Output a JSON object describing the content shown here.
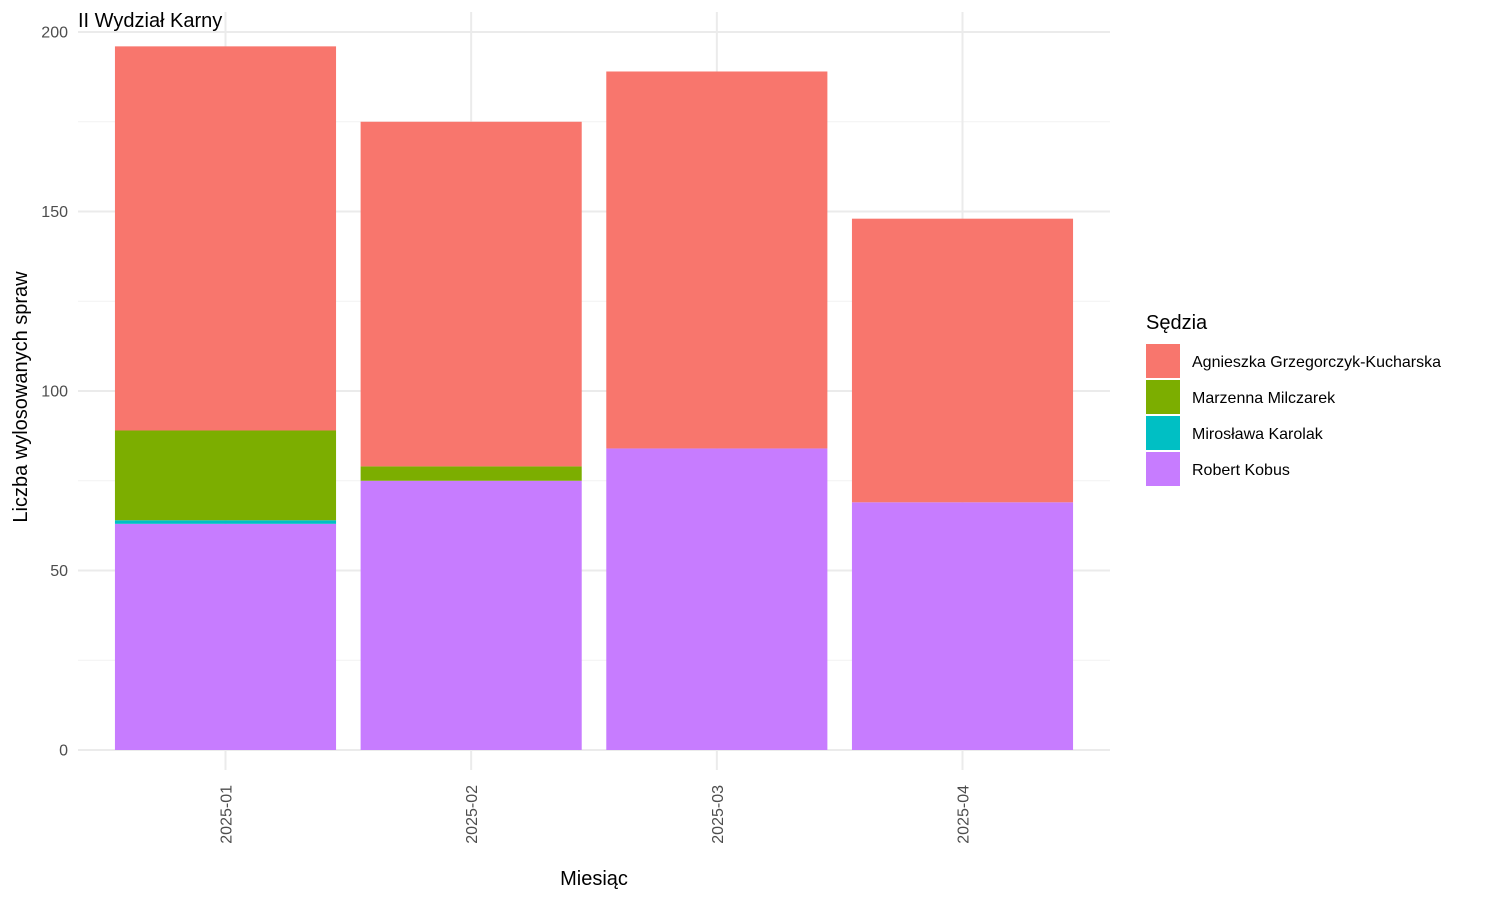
{
  "chart_data": {
    "type": "bar",
    "stacked": true,
    "title": "II Wydział Karny",
    "xlabel": "Miesiąc",
    "ylabel": "Liczba wylosowanych spraw",
    "categories": [
      "2025-01",
      "2025-02",
      "2025-03",
      "2025-04"
    ],
    "ylim": [
      0,
      200
    ],
    "yticks": [
      0,
      50,
      100,
      150,
      200
    ],
    "grid": true,
    "legend": {
      "title": "Sędzia",
      "position": "right"
    },
    "series": [
      {
        "name": "Robert Kobus",
        "color": "#C77CFF",
        "values": [
          63,
          75,
          84,
          69
        ]
      },
      {
        "name": "Mirosława Karolak",
        "color": "#00BFC4",
        "values": [
          1,
          0,
          0,
          0
        ]
      },
      {
        "name": "Marzenna Milczarek",
        "color": "#7CAE00",
        "values": [
          25,
          4,
          0,
          0
        ]
      },
      {
        "name": "Agnieszka Grzegorczyk-Kucharska",
        "color": "#F8766D",
        "values": [
          107,
          96,
          105,
          79
        ]
      }
    ],
    "legend_order": [
      "Agnieszka Grzegorczyk-Kucharska",
      "Marzenna Milczarek",
      "Mirosława Karolak",
      "Robert Kobus"
    ]
  }
}
